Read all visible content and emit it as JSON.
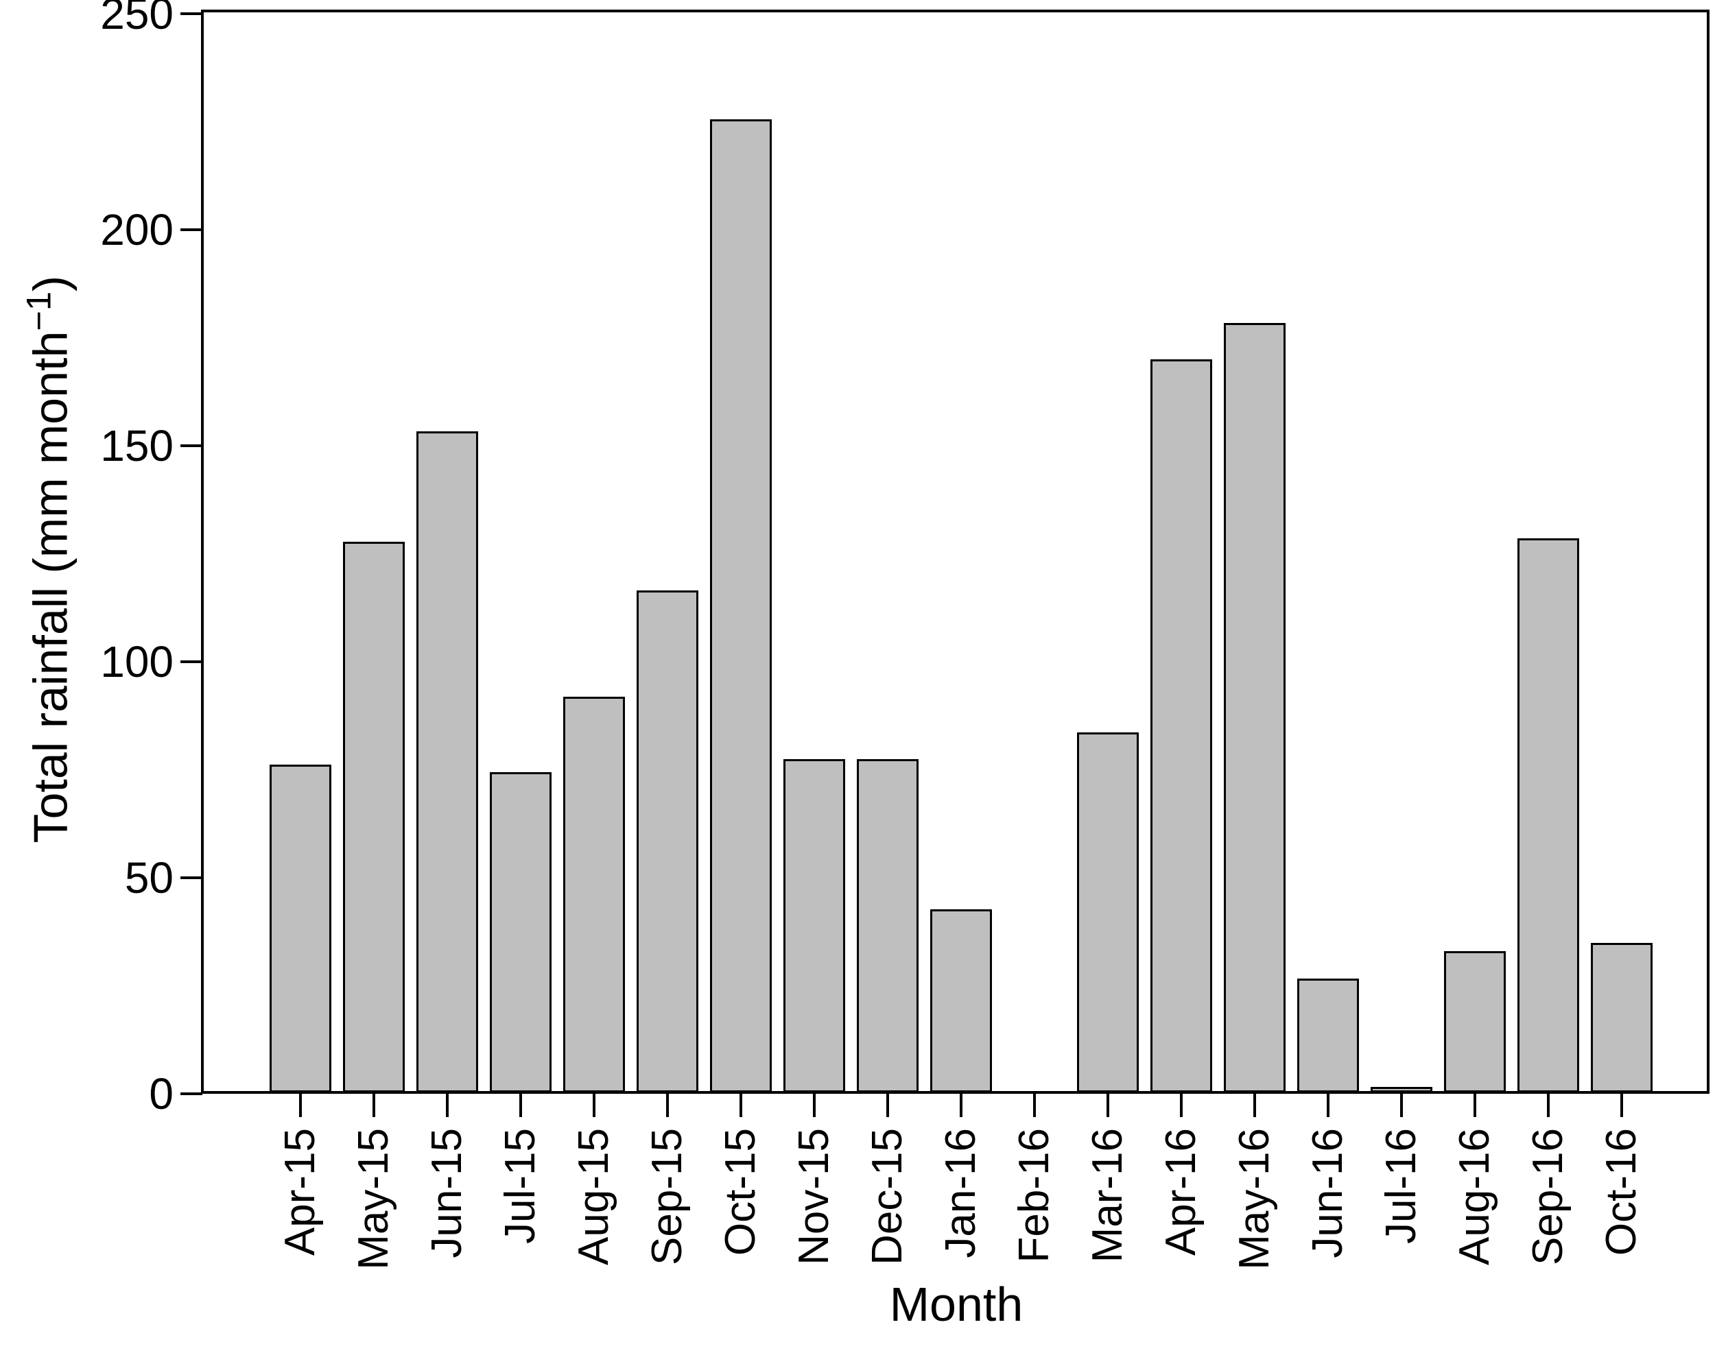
{
  "figure": {
    "background": "#ffffff"
  },
  "chart_data": {
    "type": "bar",
    "title": "",
    "xlabel": "Month",
    "ylabel": "Total rainfall (mm month⁻¹)",
    "ylabel_parts": {
      "main": "Total rainfall (mm month",
      "superscript": "−1",
      "close": ")"
    },
    "categories": [
      "Apr-15",
      "May-15",
      "Jun-15",
      "Jul-15",
      "Aug-15",
      "Sep-15",
      "Oct-15",
      "Nov-15",
      "Dec-15",
      "Jan-16",
      "Feb-16",
      "Mar-16",
      "Apr-16",
      "May-16",
      "Jun-16",
      "Jul-16",
      "Aug-16",
      "Sep-16",
      "Oct-16"
    ],
    "values": [
      75.9,
      127.5,
      153.0,
      74.1,
      91.6,
      116.2,
      225.2,
      77.1,
      77.1,
      42.4,
      0,
      83.3,
      169.7,
      178.1,
      26.3,
      1.0,
      32.7,
      128.3,
      34.6
    ],
    "ylim": [
      0,
      250
    ],
    "yticks": [
      0,
      50,
      100,
      150,
      200,
      250
    ],
    "bar_fill": "#bfbfbf",
    "bar_border": "#000000",
    "axis_color": "#000000",
    "grid": false,
    "legend_position": "none"
  }
}
